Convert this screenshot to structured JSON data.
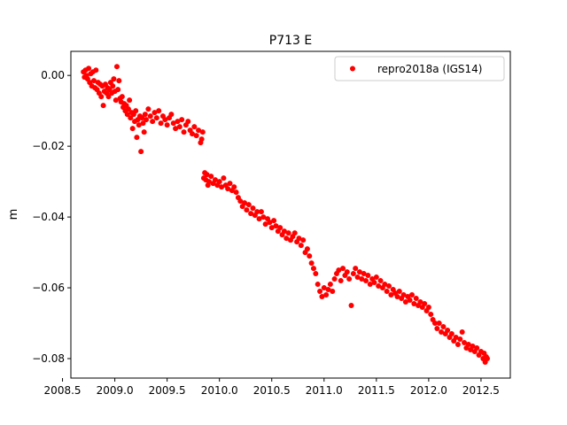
{
  "chart_data": {
    "type": "scatter",
    "title": "P713 E",
    "xlabel": "",
    "ylabel": "m",
    "xlim": [
      2008.58,
      2012.78
    ],
    "ylim": [
      -0.0855,
      0.0068
    ],
    "grid": false,
    "legend_position": "top-right",
    "x_ticks": [
      2008.5,
      2009.0,
      2009.5,
      2010.0,
      2010.5,
      2011.0,
      2011.5,
      2012.0,
      2012.5
    ],
    "x_tick_labels": [
      "2008.5",
      "2009.0",
      "2009.5",
      "2010.0",
      "2010.5",
      "2011.0",
      "2011.5",
      "2012.0",
      "2012.5"
    ],
    "y_ticks": [
      0.0,
      -0.02,
      -0.04,
      -0.06,
      -0.08
    ],
    "y_tick_labels": [
      "0.00",
      "−0.02",
      "−0.04",
      "−0.06",
      "−0.08"
    ],
    "series": [
      {
        "name": "repro2018a (IGS14)",
        "color": "#ff0000",
        "marker": "circle",
        "points": [
          [
            2008.7,
            0.001
          ],
          [
            2008.71,
            -0.0005
          ],
          [
            2008.72,
            0.0015
          ],
          [
            2008.73,
            0.0
          ],
          [
            2008.74,
            -0.001
          ],
          [
            2008.75,
            0.002
          ],
          [
            2008.76,
            -0.002
          ],
          [
            2008.77,
            0.0005
          ],
          [
            2008.78,
            -0.003
          ],
          [
            2008.79,
            0.001
          ],
          [
            2008.8,
            -0.0015
          ],
          [
            2008.81,
            -0.0035
          ],
          [
            2008.82,
            0.0015
          ],
          [
            2008.83,
            -0.004
          ],
          [
            2008.84,
            -0.002
          ],
          [
            2008.85,
            -0.005
          ],
          [
            2008.86,
            -0.0025
          ],
          [
            2008.87,
            -0.006
          ],
          [
            2008.88,
            -0.003
          ],
          [
            2008.89,
            -0.0085
          ],
          [
            2008.9,
            -0.0045
          ],
          [
            2008.91,
            -0.0025
          ],
          [
            2008.92,
            -0.005
          ],
          [
            2008.93,
            -0.0035
          ],
          [
            2008.94,
            -0.006
          ],
          [
            2008.95,
            -0.004
          ],
          [
            2008.96,
            -0.002
          ],
          [
            2008.97,
            -0.005
          ],
          [
            2008.98,
            -0.003
          ],
          [
            2008.99,
            -0.001
          ],
          [
            2009.0,
            -0.0045
          ],
          [
            2009.01,
            -0.007
          ],
          [
            2009.02,
            0.0025
          ],
          [
            2009.03,
            -0.004
          ],
          [
            2009.04,
            -0.0015
          ],
          [
            2009.05,
            -0.0065
          ],
          [
            2009.06,
            -0.0075
          ],
          [
            2009.07,
            -0.006
          ],
          [
            2009.08,
            -0.009
          ],
          [
            2009.09,
            -0.008
          ],
          [
            2009.1,
            -0.01
          ],
          [
            2009.11,
            -0.0085
          ],
          [
            2009.12,
            -0.011
          ],
          [
            2009.13,
            -0.0095
          ],
          [
            2009.14,
            -0.007
          ],
          [
            2009.15,
            -0.012
          ],
          [
            2009.16,
            -0.0105
          ],
          [
            2009.17,
            -0.015
          ],
          [
            2009.18,
            -0.011
          ],
          [
            2009.19,
            -0.013
          ],
          [
            2009.2,
            -0.01
          ],
          [
            2009.21,
            -0.0175
          ],
          [
            2009.22,
            -0.0125
          ],
          [
            2009.23,
            -0.014
          ],
          [
            2009.24,
            -0.0115
          ],
          [
            2009.25,
            -0.0215
          ],
          [
            2009.26,
            -0.012
          ],
          [
            2009.27,
            -0.0135
          ],
          [
            2009.28,
            -0.016
          ],
          [
            2009.29,
            -0.011
          ],
          [
            2009.3,
            -0.0125
          ],
          [
            2009.32,
            -0.0095
          ],
          [
            2009.34,
            -0.0115
          ],
          [
            2009.36,
            -0.013
          ],
          [
            2009.38,
            -0.0105
          ],
          [
            2009.4,
            -0.012
          ],
          [
            2009.42,
            -0.01
          ],
          [
            2009.44,
            -0.0135
          ],
          [
            2009.46,
            -0.0115
          ],
          [
            2009.48,
            -0.0125
          ],
          [
            2009.5,
            -0.014
          ],
          [
            2009.52,
            -0.012
          ],
          [
            2009.54,
            -0.011
          ],
          [
            2009.56,
            -0.0135
          ],
          [
            2009.58,
            -0.015
          ],
          [
            2009.6,
            -0.013
          ],
          [
            2009.62,
            -0.0145
          ],
          [
            2009.64,
            -0.0125
          ],
          [
            2009.66,
            -0.016
          ],
          [
            2009.68,
            -0.014
          ],
          [
            2009.7,
            -0.013
          ],
          [
            2009.72,
            -0.0155
          ],
          [
            2009.74,
            -0.0165
          ],
          [
            2009.76,
            -0.0145
          ],
          [
            2009.78,
            -0.017
          ],
          [
            2009.8,
            -0.0155
          ],
          [
            2009.82,
            -0.019
          ],
          [
            2009.83,
            -0.018
          ],
          [
            2009.84,
            -0.016
          ],
          [
            2009.85,
            -0.029
          ],
          [
            2009.86,
            -0.0275
          ],
          [
            2009.87,
            -0.0295
          ],
          [
            2009.88,
            -0.028
          ],
          [
            2009.89,
            -0.031
          ],
          [
            2009.9,
            -0.03
          ],
          [
            2009.92,
            -0.0285
          ],
          [
            2009.94,
            -0.0305
          ],
          [
            2009.96,
            -0.0295
          ],
          [
            2009.98,
            -0.031
          ],
          [
            2010.0,
            -0.03
          ],
          [
            2010.02,
            -0.0315
          ],
          [
            2010.04,
            -0.029
          ],
          [
            2010.06,
            -0.031
          ],
          [
            2010.08,
            -0.032
          ],
          [
            2010.1,
            -0.0305
          ],
          [
            2010.12,
            -0.0325
          ],
          [
            2010.14,
            -0.0315
          ],
          [
            2010.16,
            -0.033
          ],
          [
            2010.18,
            -0.0345
          ],
          [
            2010.2,
            -0.0355
          ],
          [
            2010.22,
            -0.037
          ],
          [
            2010.24,
            -0.036
          ],
          [
            2010.26,
            -0.038
          ],
          [
            2010.28,
            -0.0365
          ],
          [
            2010.3,
            -0.039
          ],
          [
            2010.32,
            -0.0375
          ],
          [
            2010.34,
            -0.0395
          ],
          [
            2010.36,
            -0.0385
          ],
          [
            2010.38,
            -0.0405
          ],
          [
            2010.4,
            -0.0385
          ],
          [
            2010.42,
            -0.04
          ],
          [
            2010.44,
            -0.042
          ],
          [
            2010.46,
            -0.0405
          ],
          [
            2010.48,
            -0.0415
          ],
          [
            2010.5,
            -0.043
          ],
          [
            2010.52,
            -0.041
          ],
          [
            2010.54,
            -0.0425
          ],
          [
            2010.56,
            -0.044
          ],
          [
            2010.58,
            -0.043
          ],
          [
            2010.6,
            -0.045
          ],
          [
            2010.62,
            -0.044
          ],
          [
            2010.64,
            -0.046
          ],
          [
            2010.66,
            -0.0445
          ],
          [
            2010.68,
            -0.0465
          ],
          [
            2010.7,
            -0.0455
          ],
          [
            2010.72,
            -0.0445
          ],
          [
            2010.74,
            -0.047
          ],
          [
            2010.76,
            -0.046
          ],
          [
            2010.78,
            -0.048
          ],
          [
            2010.8,
            -0.0465
          ],
          [
            2010.82,
            -0.05
          ],
          [
            2010.84,
            -0.049
          ],
          [
            2010.86,
            -0.051
          ],
          [
            2010.88,
            -0.053
          ],
          [
            2010.9,
            -0.0545
          ],
          [
            2010.92,
            -0.056
          ],
          [
            2010.94,
            -0.059
          ],
          [
            2010.96,
            -0.061
          ],
          [
            2010.98,
            -0.0625
          ],
          [
            2011.0,
            -0.06
          ],
          [
            2011.02,
            -0.062
          ],
          [
            2011.04,
            -0.0605
          ],
          [
            2011.06,
            -0.059
          ],
          [
            2011.08,
            -0.061
          ],
          [
            2011.1,
            -0.0575
          ],
          [
            2011.12,
            -0.056
          ],
          [
            2011.14,
            -0.055
          ],
          [
            2011.16,
            -0.058
          ],
          [
            2011.18,
            -0.0545
          ],
          [
            2011.2,
            -0.0565
          ],
          [
            2011.22,
            -0.0555
          ],
          [
            2011.24,
            -0.0575
          ],
          [
            2011.26,
            -0.065
          ],
          [
            2011.28,
            -0.056
          ],
          [
            2011.3,
            -0.0545
          ],
          [
            2011.32,
            -0.057
          ],
          [
            2011.34,
            -0.0555
          ],
          [
            2011.36,
            -0.0575
          ],
          [
            2011.38,
            -0.056
          ],
          [
            2011.4,
            -0.058
          ],
          [
            2011.42,
            -0.0565
          ],
          [
            2011.44,
            -0.059
          ],
          [
            2011.46,
            -0.0575
          ],
          [
            2011.48,
            -0.0585
          ],
          [
            2011.5,
            -0.057
          ],
          [
            2011.52,
            -0.0595
          ],
          [
            2011.54,
            -0.058
          ],
          [
            2011.56,
            -0.06
          ],
          [
            2011.58,
            -0.059
          ],
          [
            2011.6,
            -0.061
          ],
          [
            2011.62,
            -0.0595
          ],
          [
            2011.64,
            -0.062
          ],
          [
            2011.66,
            -0.0605
          ],
          [
            2011.68,
            -0.0615
          ],
          [
            2011.7,
            -0.0625
          ],
          [
            2011.72,
            -0.061
          ],
          [
            2011.74,
            -0.063
          ],
          [
            2011.76,
            -0.062
          ],
          [
            2011.78,
            -0.064
          ],
          [
            2011.8,
            -0.0625
          ],
          [
            2011.82,
            -0.0635
          ],
          [
            2011.84,
            -0.062
          ],
          [
            2011.86,
            -0.0645
          ],
          [
            2011.88,
            -0.063
          ],
          [
            2011.9,
            -0.065
          ],
          [
            2011.92,
            -0.064
          ],
          [
            2011.94,
            -0.0655
          ],
          [
            2011.96,
            -0.0645
          ],
          [
            2011.98,
            -0.0665
          ],
          [
            2012.0,
            -0.0655
          ],
          [
            2012.02,
            -0.0675
          ],
          [
            2012.04,
            -0.069
          ],
          [
            2012.06,
            -0.07
          ],
          [
            2012.08,
            -0.0715
          ],
          [
            2012.1,
            -0.07
          ],
          [
            2012.12,
            -0.0725
          ],
          [
            2012.14,
            -0.071
          ],
          [
            2012.16,
            -0.073
          ],
          [
            2012.18,
            -0.072
          ],
          [
            2012.2,
            -0.074
          ],
          [
            2012.22,
            -0.073
          ],
          [
            2012.24,
            -0.075
          ],
          [
            2012.26,
            -0.074
          ],
          [
            2012.28,
            -0.076
          ],
          [
            2012.3,
            -0.0745
          ],
          [
            2012.32,
            -0.0725
          ],
          [
            2012.34,
            -0.0755
          ],
          [
            2012.36,
            -0.077
          ],
          [
            2012.38,
            -0.076
          ],
          [
            2012.4,
            -0.0775
          ],
          [
            2012.42,
            -0.0765
          ],
          [
            2012.44,
            -0.078
          ],
          [
            2012.46,
            -0.077
          ],
          [
            2012.48,
            -0.079
          ],
          [
            2012.5,
            -0.078
          ],
          [
            2012.52,
            -0.08
          ],
          [
            2012.53,
            -0.0785
          ],
          [
            2012.54,
            -0.081
          ],
          [
            2012.55,
            -0.0795
          ],
          [
            2012.56,
            -0.08
          ]
        ]
      }
    ]
  }
}
